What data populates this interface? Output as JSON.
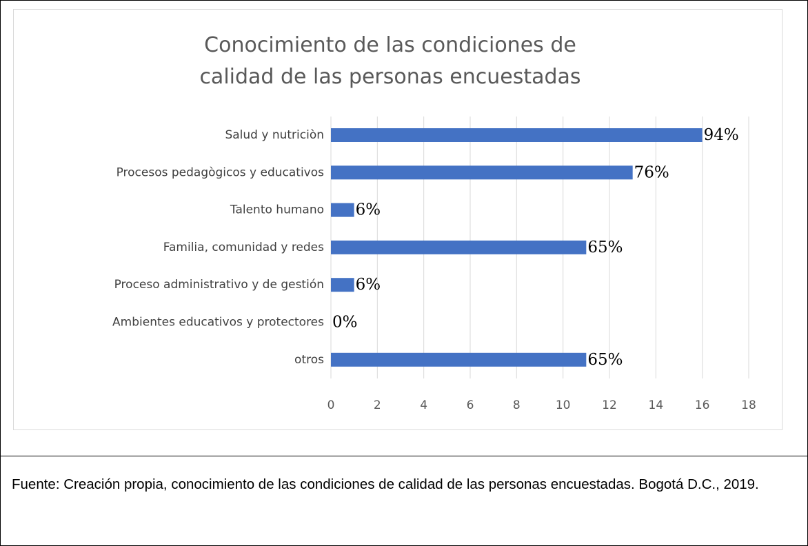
{
  "chart_data": {
    "type": "bar",
    "orientation": "horizontal",
    "title": "Conocimiento de las condiciones de calidad de las personas encuestadas",
    "categories": [
      "Salud y nutriciòn",
      "Procesos pedagògicos y educativos",
      "Talento humano",
      "Familia, comunidad y redes",
      "Proceso administrativo y de gestión",
      "Ambientes educativos y protectores",
      "otros"
    ],
    "values": [
      16,
      13,
      1,
      11,
      1,
      0,
      11
    ],
    "value_labels": [
      "94%",
      "76%",
      "6%",
      "65%",
      "6%",
      "0%",
      "65%"
    ],
    "color": "#4472c4",
    "xlim": [
      0,
      18
    ],
    "xticks": [
      0,
      2,
      4,
      6,
      8,
      10,
      12,
      14,
      16,
      18
    ],
    "grid": true
  },
  "caption": "Fuente: Creación propia, conocimiento de las condiciones de calidad de las personas encuestadas. Bogotá D.C., 2019."
}
